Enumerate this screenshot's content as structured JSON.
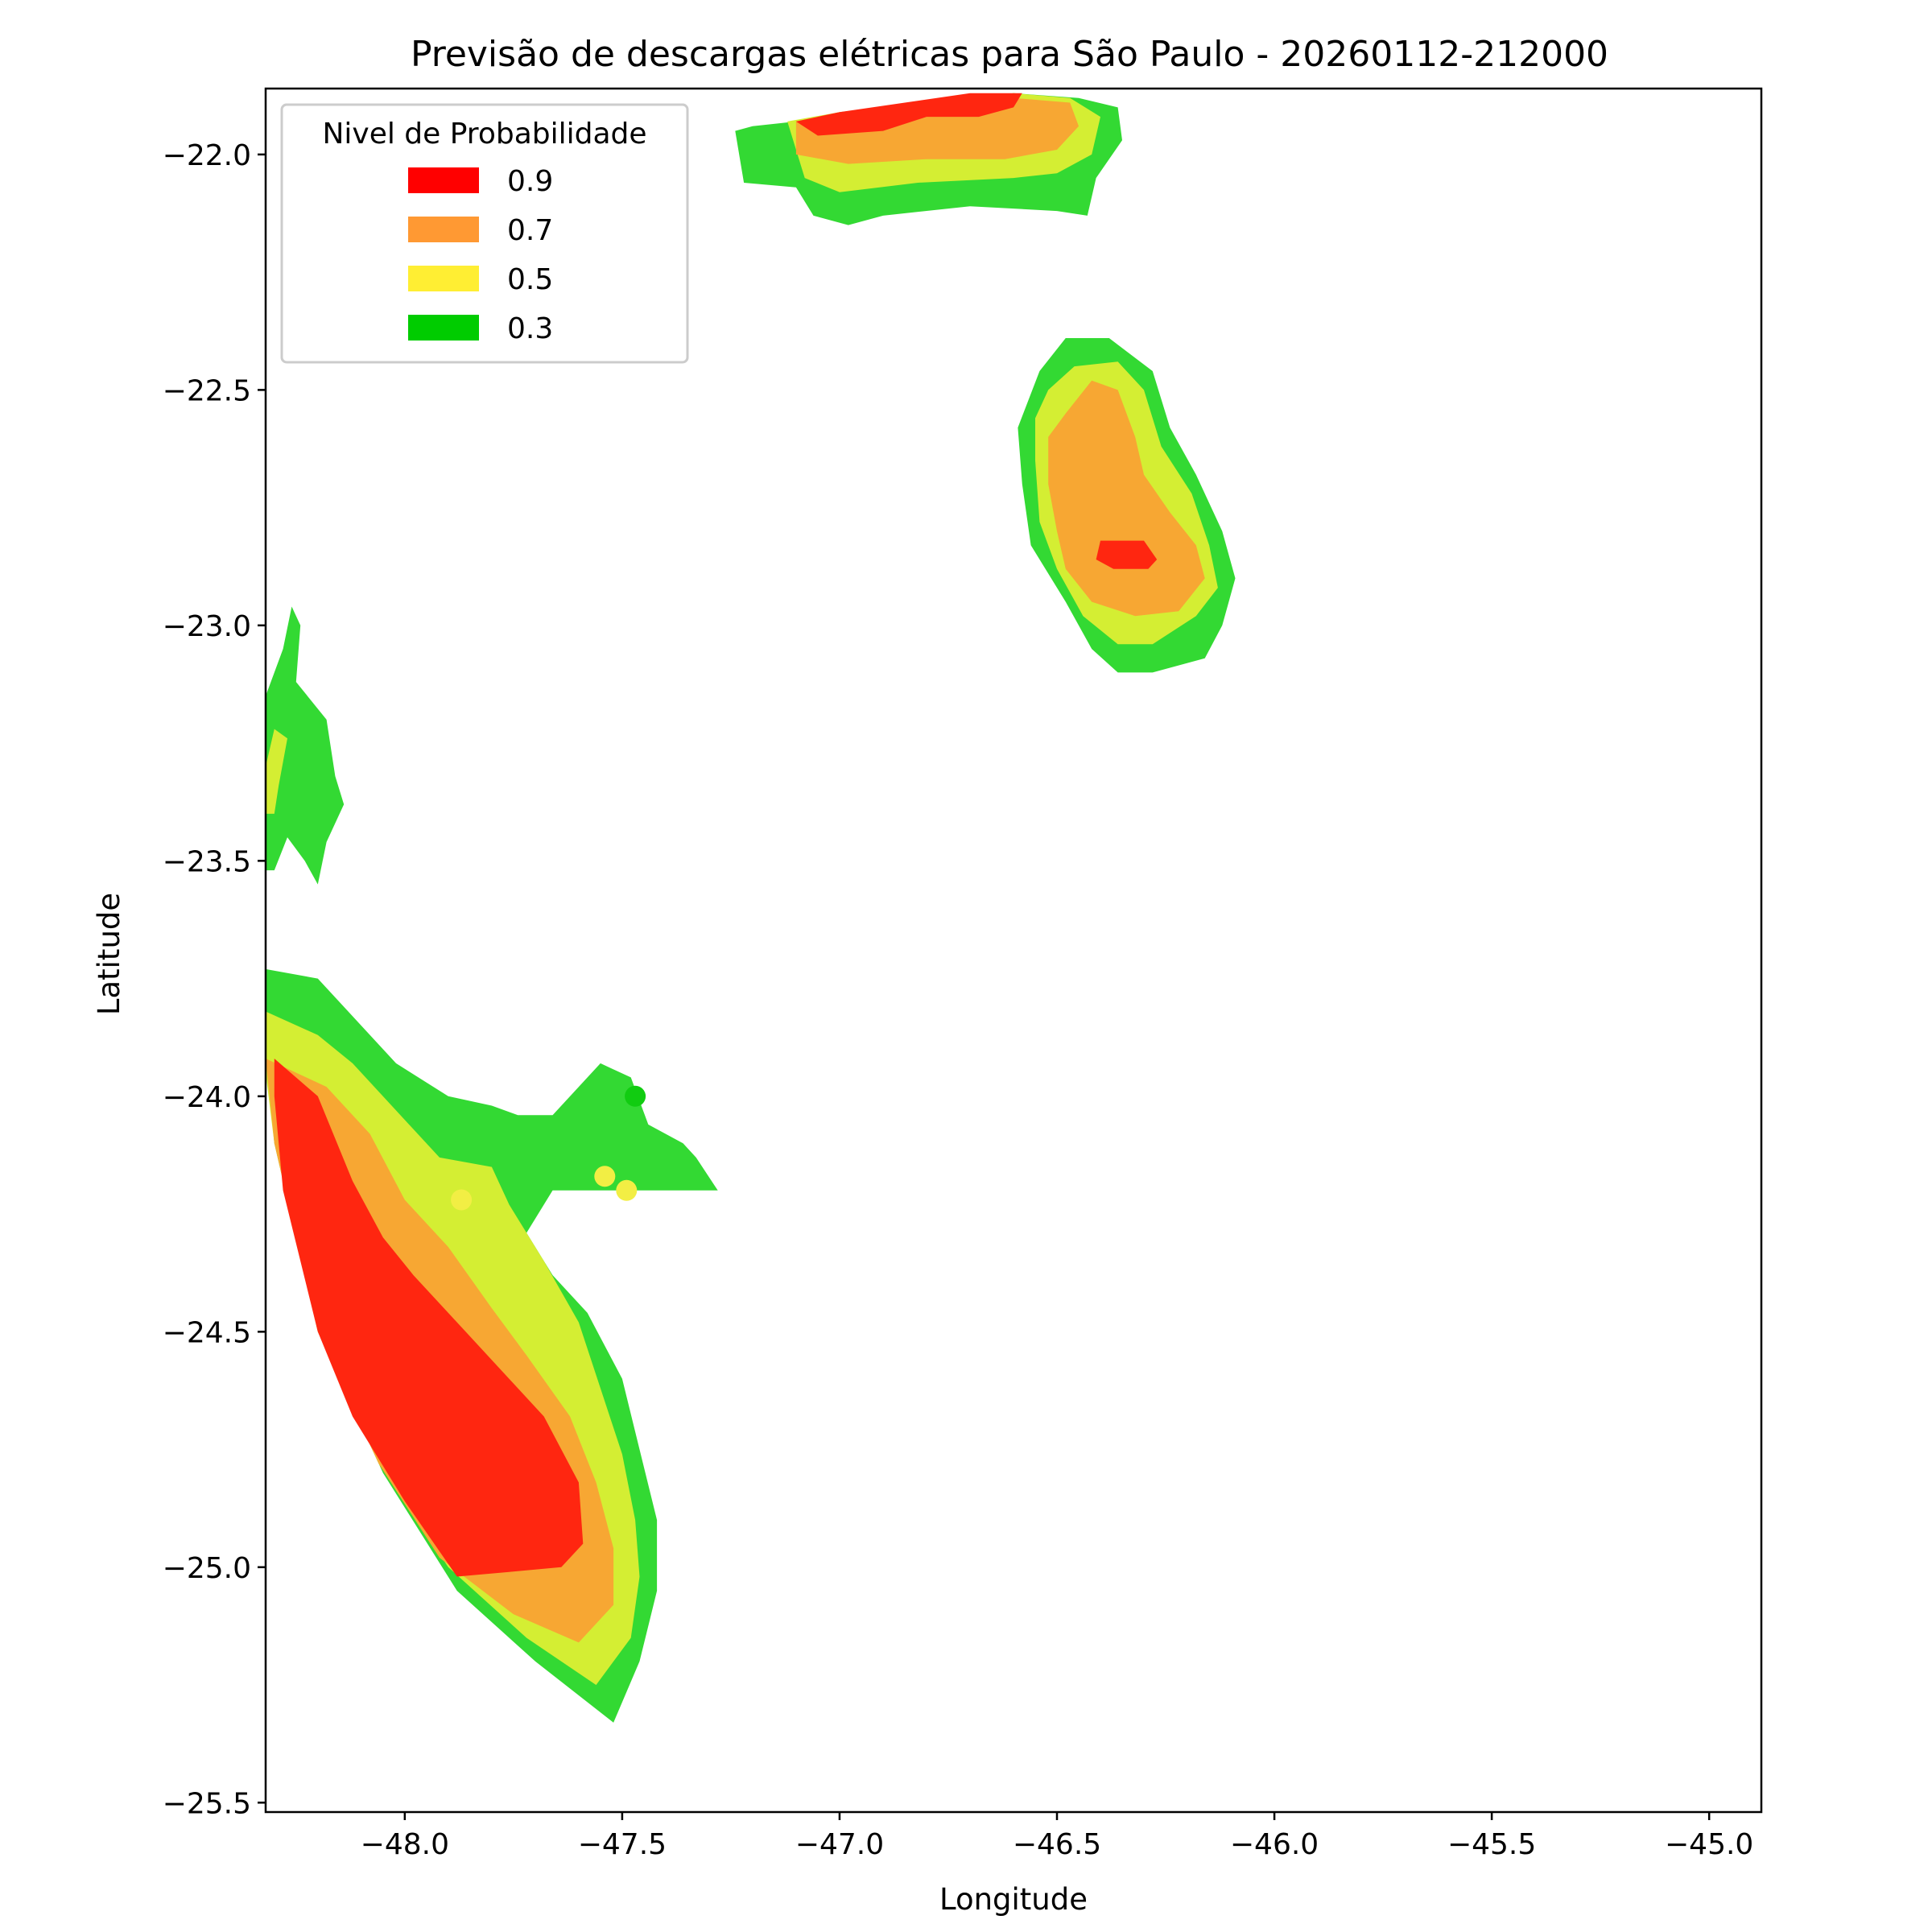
{
  "chart_data": {
    "type": "contour",
    "title": "Previsão de descargas elétricas para São Paulo - 20260112-212000",
    "xlabel": "Longitude",
    "ylabel": "Latitude",
    "xlim": [
      -48.32,
      -44.88
    ],
    "ylim": [
      -25.52,
      -21.86
    ],
    "xticks": [
      -48.0,
      -47.5,
      -47.0,
      -46.5,
      -46.0,
      -45.5,
      -45.0
    ],
    "xtick_labels": [
      "−48.0",
      "−47.5",
      "−47.0",
      "−46.5",
      "−46.0",
      "−45.5",
      "−45.0"
    ],
    "yticks": [
      -22.0,
      -22.5,
      -23.0,
      -23.5,
      -24.0,
      -24.5,
      -25.0,
      -25.5
    ],
    "ytick_labels": [
      "−22.0",
      "−22.5",
      "−23.0",
      "−23.5",
      "−24.0",
      "−24.5",
      "−25.0",
      "−25.5"
    ],
    "grid": false,
    "legend": {
      "title": "Nivel de Probabilidade",
      "placement": "top-left",
      "entries": [
        {
          "label": "0.9",
          "color": "#ff0000"
        },
        {
          "label": "0.7",
          "color": "#ff9933"
        },
        {
          "label": "0.5",
          "color": "#ffee33"
        },
        {
          "label": "0.3",
          "color": "#00cc00"
        }
      ]
    },
    "fill_colors": {
      "0.3": "#33d933",
      "0.5": "#d4ee33",
      "0.7": "#f7a733",
      "0.9": "#ff2610"
    },
    "regions": [
      {
        "cell": "north",
        "level": "0.3",
        "polygon": [
          [
            -47.24,
            -21.95
          ],
          [
            -47.22,
            -22.06
          ],
          [
            -47.1,
            -22.07
          ],
          [
            -47.06,
            -22.13
          ],
          [
            -46.98,
            -22.15
          ],
          [
            -46.9,
            -22.13
          ],
          [
            -46.7,
            -22.11
          ],
          [
            -46.5,
            -22.12
          ],
          [
            -46.43,
            -22.13
          ],
          [
            -46.41,
            -22.05
          ],
          [
            -46.35,
            -21.97
          ],
          [
            -46.36,
            -21.9
          ],
          [
            -46.45,
            -21.88
          ],
          [
            -46.6,
            -21.87
          ],
          [
            -46.8,
            -21.9
          ],
          [
            -47.0,
            -21.92
          ],
          [
            -47.2,
            -21.94
          ]
        ]
      },
      {
        "cell": "north",
        "level": "0.5",
        "polygon": [
          [
            -47.12,
            -21.93
          ],
          [
            -47.08,
            -22.05
          ],
          [
            -47.0,
            -22.08
          ],
          [
            -46.82,
            -22.06
          ],
          [
            -46.6,
            -22.05
          ],
          [
            -46.5,
            -22.04
          ],
          [
            -46.42,
            -22.0
          ],
          [
            -46.4,
            -21.92
          ],
          [
            -46.47,
            -21.88
          ],
          [
            -46.6,
            -21.87
          ],
          [
            -46.8,
            -21.89
          ],
          [
            -47.0,
            -21.91
          ]
        ]
      },
      {
        "cell": "north",
        "level": "0.7",
        "polygon": [
          [
            -47.1,
            -21.93
          ],
          [
            -47.1,
            -22.0
          ],
          [
            -46.98,
            -22.02
          ],
          [
            -46.8,
            -22.01
          ],
          [
            -46.62,
            -22.01
          ],
          [
            -46.5,
            -21.99
          ],
          [
            -46.45,
            -21.94
          ],
          [
            -46.47,
            -21.89
          ],
          [
            -46.6,
            -21.88
          ],
          [
            -46.8,
            -21.89
          ],
          [
            -47.0,
            -21.91
          ]
        ]
      },
      {
        "cell": "north",
        "level": "0.9",
        "polygon": [
          [
            -47.1,
            -21.93
          ],
          [
            -47.05,
            -21.96
          ],
          [
            -46.9,
            -21.95
          ],
          [
            -46.8,
            -21.92
          ],
          [
            -46.68,
            -21.92
          ],
          [
            -46.6,
            -21.9
          ],
          [
            -46.58,
            -21.87
          ],
          [
            -46.7,
            -21.87
          ],
          [
            -46.85,
            -21.89
          ],
          [
            -47.0,
            -21.91
          ]
        ]
      },
      {
        "cell": "center",
        "level": "0.3",
        "polygon": [
          [
            -46.54,
            -22.46
          ],
          [
            -46.48,
            -22.39
          ],
          [
            -46.38,
            -22.39
          ],
          [
            -46.28,
            -22.46
          ],
          [
            -46.24,
            -22.58
          ],
          [
            -46.18,
            -22.68
          ],
          [
            -46.12,
            -22.8
          ],
          [
            -46.09,
            -22.9
          ],
          [
            -46.12,
            -23.0
          ],
          [
            -46.16,
            -23.07
          ],
          [
            -46.28,
            -23.1
          ],
          [
            -46.36,
            -23.1
          ],
          [
            -46.42,
            -23.05
          ],
          [
            -46.48,
            -22.95
          ],
          [
            -46.56,
            -22.83
          ],
          [
            -46.58,
            -22.7
          ],
          [
            -46.59,
            -22.58
          ]
        ]
      },
      {
        "cell": "center",
        "level": "0.5",
        "polygon": [
          [
            -46.52,
            -22.5
          ],
          [
            -46.46,
            -22.45
          ],
          [
            -46.36,
            -22.44
          ],
          [
            -46.3,
            -22.5
          ],
          [
            -46.26,
            -22.62
          ],
          [
            -46.19,
            -22.72
          ],
          [
            -46.15,
            -22.83
          ],
          [
            -46.13,
            -22.92
          ],
          [
            -46.18,
            -22.98
          ],
          [
            -46.28,
            -23.04
          ],
          [
            -46.36,
            -23.04
          ],
          [
            -46.44,
            -22.98
          ],
          [
            -46.5,
            -22.88
          ],
          [
            -46.54,
            -22.78
          ],
          [
            -46.55,
            -22.65
          ],
          [
            -46.55,
            -22.56
          ]
        ]
      },
      {
        "cell": "center",
        "level": "0.7",
        "polygon": [
          [
            -46.48,
            -22.55
          ],
          [
            -46.42,
            -22.48
          ],
          [
            -46.36,
            -22.5
          ],
          [
            -46.32,
            -22.6
          ],
          [
            -46.3,
            -22.68
          ],
          [
            -46.24,
            -22.76
          ],
          [
            -46.18,
            -22.83
          ],
          [
            -46.16,
            -22.9
          ],
          [
            -46.22,
            -22.97
          ],
          [
            -46.32,
            -22.98
          ],
          [
            -46.42,
            -22.95
          ],
          [
            -46.48,
            -22.88
          ],
          [
            -46.5,
            -22.8
          ],
          [
            -46.52,
            -22.7
          ],
          [
            -46.52,
            -22.6
          ]
        ]
      },
      {
        "cell": "center",
        "level": "0.9",
        "polygon": [
          [
            -46.4,
            -22.82
          ],
          [
            -46.3,
            -22.82
          ],
          [
            -46.27,
            -22.86
          ],
          [
            -46.29,
            -22.88
          ],
          [
            -46.37,
            -22.88
          ],
          [
            -46.41,
            -22.86
          ]
        ]
      },
      {
        "cell": "west",
        "level": "0.3",
        "polygon": [
          [
            -48.32,
            -23.15
          ],
          [
            -48.28,
            -23.05
          ],
          [
            -48.26,
            -22.96
          ],
          [
            -48.24,
            -23.0
          ],
          [
            -48.25,
            -23.12
          ],
          [
            -48.18,
            -23.2
          ],
          [
            -48.16,
            -23.32
          ],
          [
            -48.14,
            -23.38
          ],
          [
            -48.18,
            -23.46
          ],
          [
            -48.2,
            -23.55
          ],
          [
            -48.23,
            -23.5
          ],
          [
            -48.27,
            -23.45
          ],
          [
            -48.3,
            -23.52
          ],
          [
            -48.32,
            -23.52
          ]
        ]
      },
      {
        "cell": "west",
        "level": "0.5",
        "polygon": [
          [
            -48.32,
            -23.3
          ],
          [
            -48.3,
            -23.22
          ],
          [
            -48.27,
            -23.24
          ],
          [
            -48.29,
            -23.34
          ],
          [
            -48.3,
            -23.4
          ],
          [
            -48.32,
            -23.4
          ]
        ]
      },
      {
        "cell": "south",
        "level": "0.3",
        "polygon": [
          [
            -48.32,
            -23.73
          ],
          [
            -48.2,
            -23.75
          ],
          [
            -48.12,
            -23.83
          ],
          [
            -48.02,
            -23.93
          ],
          [
            -47.9,
            -24.0
          ],
          [
            -47.8,
            -24.02
          ],
          [
            -47.74,
            -24.04
          ],
          [
            -47.66,
            -24.04
          ],
          [
            -47.55,
            -23.93
          ],
          [
            -47.48,
            -23.96
          ],
          [
            -47.44,
            -24.06
          ],
          [
            -47.36,
            -24.1
          ],
          [
            -47.33,
            -24.13
          ],
          [
            -47.28,
            -24.2
          ],
          [
            -47.48,
            -24.2
          ],
          [
            -47.66,
            -24.2
          ],
          [
            -47.72,
            -24.29
          ],
          [
            -47.66,
            -24.38
          ],
          [
            -47.58,
            -24.46
          ],
          [
            -47.5,
            -24.6
          ],
          [
            -47.46,
            -24.75
          ],
          [
            -47.42,
            -24.9
          ],
          [
            -47.42,
            -25.05
          ],
          [
            -47.46,
            -25.2
          ],
          [
            -47.52,
            -25.33
          ],
          [
            -47.7,
            -25.2
          ],
          [
            -47.88,
            -25.05
          ],
          [
            -48.05,
            -24.8
          ],
          [
            -48.2,
            -24.5
          ],
          [
            -48.3,
            -24.1
          ],
          [
            -48.32,
            -23.9
          ]
        ]
      },
      {
        "cell": "south",
        "level": "0.5",
        "polygon": [
          [
            -48.32,
            -23.82
          ],
          [
            -48.2,
            -23.87
          ],
          [
            -48.12,
            -23.93
          ],
          [
            -48.0,
            -24.05
          ],
          [
            -47.92,
            -24.13
          ],
          [
            -47.8,
            -24.15
          ],
          [
            -47.76,
            -24.23
          ],
          [
            -47.68,
            -24.35
          ],
          [
            -47.6,
            -24.48
          ],
          [
            -47.55,
            -24.62
          ],
          [
            -47.5,
            -24.76
          ],
          [
            -47.47,
            -24.9
          ],
          [
            -47.46,
            -25.02
          ],
          [
            -47.48,
            -25.15
          ],
          [
            -47.56,
            -25.25
          ],
          [
            -47.72,
            -25.15
          ],
          [
            -47.9,
            -25.0
          ],
          [
            -48.06,
            -24.78
          ],
          [
            -48.2,
            -24.5
          ],
          [
            -48.3,
            -24.1
          ],
          [
            -48.32,
            -23.95
          ]
        ]
      },
      {
        "cell": "south",
        "level": "0.7",
        "polygon": [
          [
            -48.32,
            -23.92
          ],
          [
            -48.18,
            -23.98
          ],
          [
            -48.08,
            -24.08
          ],
          [
            -48.0,
            -24.22
          ],
          [
            -47.9,
            -24.32
          ],
          [
            -47.8,
            -24.45
          ],
          [
            -47.72,
            -24.55
          ],
          [
            -47.62,
            -24.68
          ],
          [
            -47.56,
            -24.82
          ],
          [
            -47.52,
            -24.96
          ],
          [
            -47.52,
            -25.08
          ],
          [
            -47.6,
            -25.16
          ],
          [
            -47.75,
            -25.1
          ],
          [
            -47.92,
            -24.98
          ],
          [
            -48.06,
            -24.78
          ],
          [
            -48.2,
            -24.5
          ],
          [
            -48.3,
            -24.1
          ]
        ]
      },
      {
        "cell": "south",
        "level": "0.9",
        "polygon": [
          [
            -48.3,
            -23.92
          ],
          [
            -48.2,
            -24.0
          ],
          [
            -48.12,
            -24.18
          ],
          [
            -48.05,
            -24.3
          ],
          [
            -47.98,
            -24.38
          ],
          [
            -47.88,
            -24.48
          ],
          [
            -47.78,
            -24.58
          ],
          [
            -47.68,
            -24.68
          ],
          [
            -47.6,
            -24.82
          ],
          [
            -47.59,
            -24.95
          ],
          [
            -47.64,
            -25.0
          ],
          [
            -47.76,
            -25.01
          ],
          [
            -47.88,
            -25.02
          ],
          [
            -48.0,
            -24.86
          ],
          [
            -48.12,
            -24.68
          ],
          [
            -48.2,
            -24.5
          ],
          [
            -48.28,
            -24.2
          ],
          [
            -48.3,
            -24.0
          ]
        ]
      }
    ],
    "markers": [
      {
        "lon": -47.87,
        "lat": -24.22,
        "level": "0.5"
      },
      {
        "lon": -47.54,
        "lat": -24.17,
        "level": "0.5"
      },
      {
        "lon": -47.49,
        "lat": -24.2,
        "level": "0.5"
      },
      {
        "lon": -47.47,
        "lat": -24.0,
        "level": "0.3"
      }
    ]
  }
}
